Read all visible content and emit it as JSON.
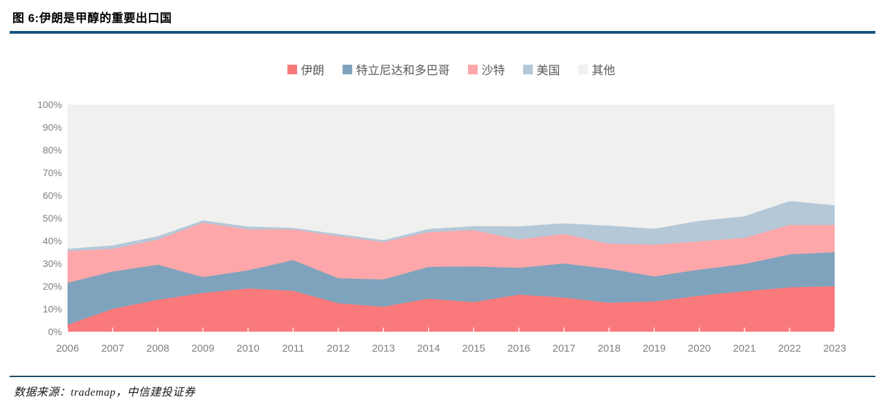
{
  "title": "图 6:伊朗是甲醇的重要出口国",
  "footer": {
    "source_text": "数据来源：trademap，中信建投证券"
  },
  "colors": {
    "title_rule": "#15537E",
    "footer_rule": "#1A4A66",
    "axis_text": "#7F7F7F",
    "legend_text": "#595959",
    "tick_mark": "rgba(255,255,255,0.9)"
  },
  "chart_data": {
    "type": "area",
    "stacked": true,
    "percent": true,
    "title": "",
    "xlabel": "",
    "ylabel": "",
    "ylim": [
      0,
      100
    ],
    "grid": false,
    "legend_position": "top",
    "categories": [
      "2006",
      "2007",
      "2008",
      "2009",
      "2010",
      "2011",
      "2012",
      "2013",
      "2014",
      "2015",
      "2016",
      "2017",
      "2018",
      "2019",
      "2020",
      "2021",
      "2022",
      "2023"
    ],
    "yticks": [
      "0%",
      "10%",
      "20%",
      "30%",
      "40%",
      "50%",
      "60%",
      "70%",
      "80%",
      "90%",
      "100%"
    ],
    "series": [
      {
        "name": "伊朗",
        "color": "#FA7A7C",
        "values": [
          3,
          10,
          14,
          17,
          19,
          18,
          12.5,
          11,
          14.5,
          13,
          16.3,
          15,
          12.7,
          13.3,
          15.8,
          17.8,
          19.5,
          20
        ]
      },
      {
        "name": "特立尼达和多巴哥",
        "color": "#7FA3BC",
        "values": [
          18.5,
          16.5,
          15.5,
          7,
          8,
          13.5,
          11,
          12,
          14,
          15.7,
          11.8,
          15,
          15,
          11,
          11.5,
          12,
          14.5,
          15
        ]
      },
      {
        "name": "沙特",
        "color": "#FDA7AA",
        "values": [
          14,
          10,
          11,
          24,
          18,
          13.5,
          18.5,
          16.5,
          15.3,
          16,
          12.5,
          13,
          11,
          14,
          12.5,
          11.5,
          13,
          12
        ]
      },
      {
        "name": "美国",
        "color": "#B5C8D8",
        "values": [
          1,
          1.5,
          1.5,
          1,
          1.3,
          0.7,
          1,
          0.8,
          1.4,
          1.8,
          5.8,
          4.7,
          8,
          7,
          9,
          9.5,
          10.5,
          8.7
        ]
      },
      {
        "name": "其他",
        "color": "#F0F0EF",
        "values": [
          63.5,
          62,
          58,
          51,
          53.7,
          54.3,
          57,
          59.7,
          54.8,
          53.5,
          53.6,
          52.3,
          53.3,
          54.7,
          51.2,
          49.2,
          42.5,
          44.3
        ]
      }
    ]
  }
}
